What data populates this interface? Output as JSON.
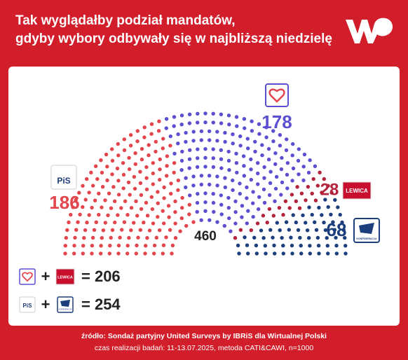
{
  "chart_data": {
    "type": "parliament",
    "title": [
      "Tak wyglądałby podział mandatów,",
      "gdyby wybory odbywały się w najbliższą niedzielę"
    ],
    "total": 460,
    "series": [
      {
        "name": "PiS",
        "color": "#e2454c",
        "value": 186
      },
      {
        "color": "#5b4fd0",
        "value": 178
      },
      {
        "name": "LEWICA",
        "color": "#b3243c",
        "value": 28
      },
      {
        "name": "KONFEDERACJA",
        "color": "#1c3e7c",
        "value": 68
      }
    ],
    "coalitions": [
      {
        "plus": "+",
        "sum": "= 206"
      },
      {
        "plus": "+",
        "sum": "= 254"
      }
    ],
    "source": [
      "źródło: Sondaż partyjny United Surveys by IBRiS dla Wirtualnej Polski",
      "czas realizacji badań: 11-13.07.2025, metoda CATI&CAWI, n=1000"
    ]
  }
}
